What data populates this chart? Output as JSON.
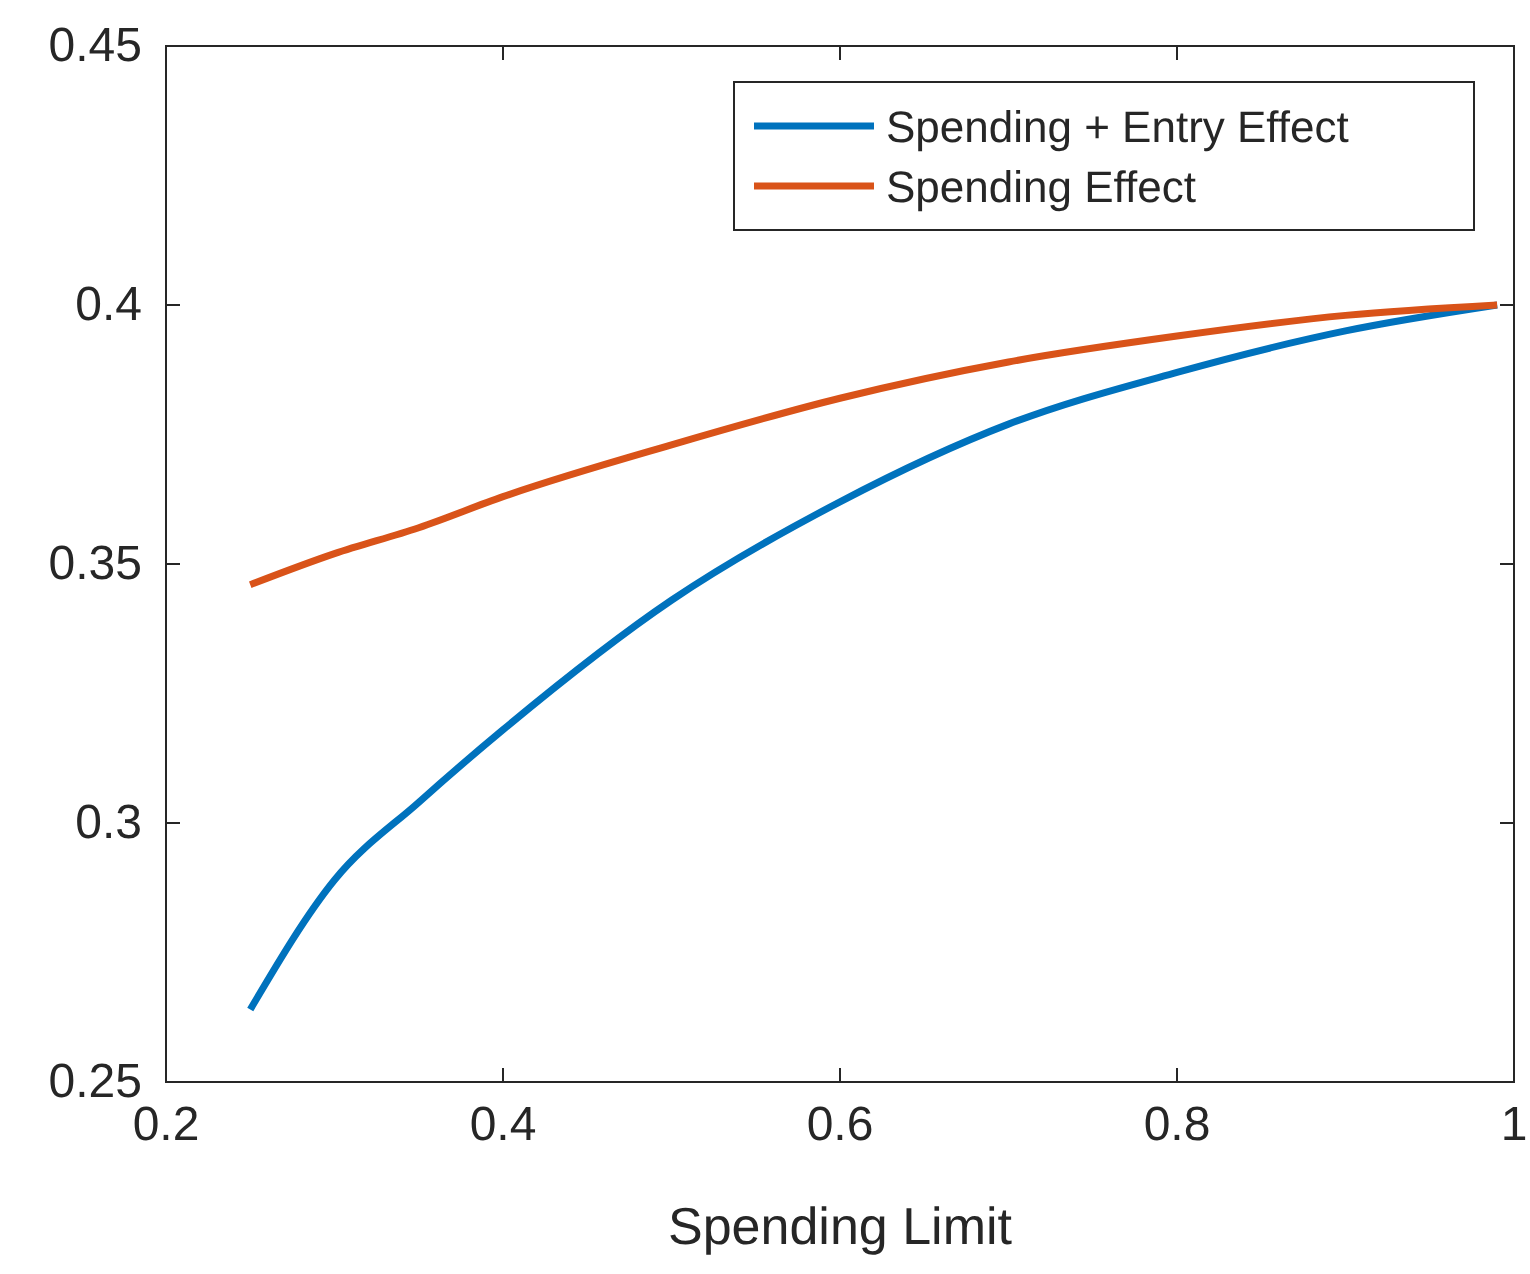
{
  "chart_data": {
    "type": "line",
    "xlabel": "Spending Limit",
    "x": [
      0.25,
      0.3,
      0.35,
      0.4,
      0.5,
      0.6,
      0.7,
      0.8,
      0.9,
      0.99
    ],
    "series": [
      {
        "name": "Spending + Entry Effect",
        "color": "#0072bd",
        "values": [
          0.264,
          0.289,
          0.304,
          0.318,
          0.343,
          0.362,
          0.377,
          0.387,
          0.395,
          0.4
        ]
      },
      {
        "name": "Spending Effect",
        "color": "#d95319",
        "values": [
          0.346,
          0.352,
          0.357,
          0.363,
          0.373,
          0.382,
          0.389,
          0.394,
          0.398,
          0.4
        ]
      }
    ],
    "xlim": [
      0.2,
      1
    ],
    "xticks": [
      0.2,
      0.4,
      0.6,
      0.8,
      1
    ],
    "ylim": [
      0.25,
      0.45
    ],
    "yticks": [
      0.25,
      0.3,
      0.35,
      0.4,
      0.45
    ],
    "grid": false,
    "legend": "top right",
    "marker": "none",
    "line_style": "solid"
  }
}
